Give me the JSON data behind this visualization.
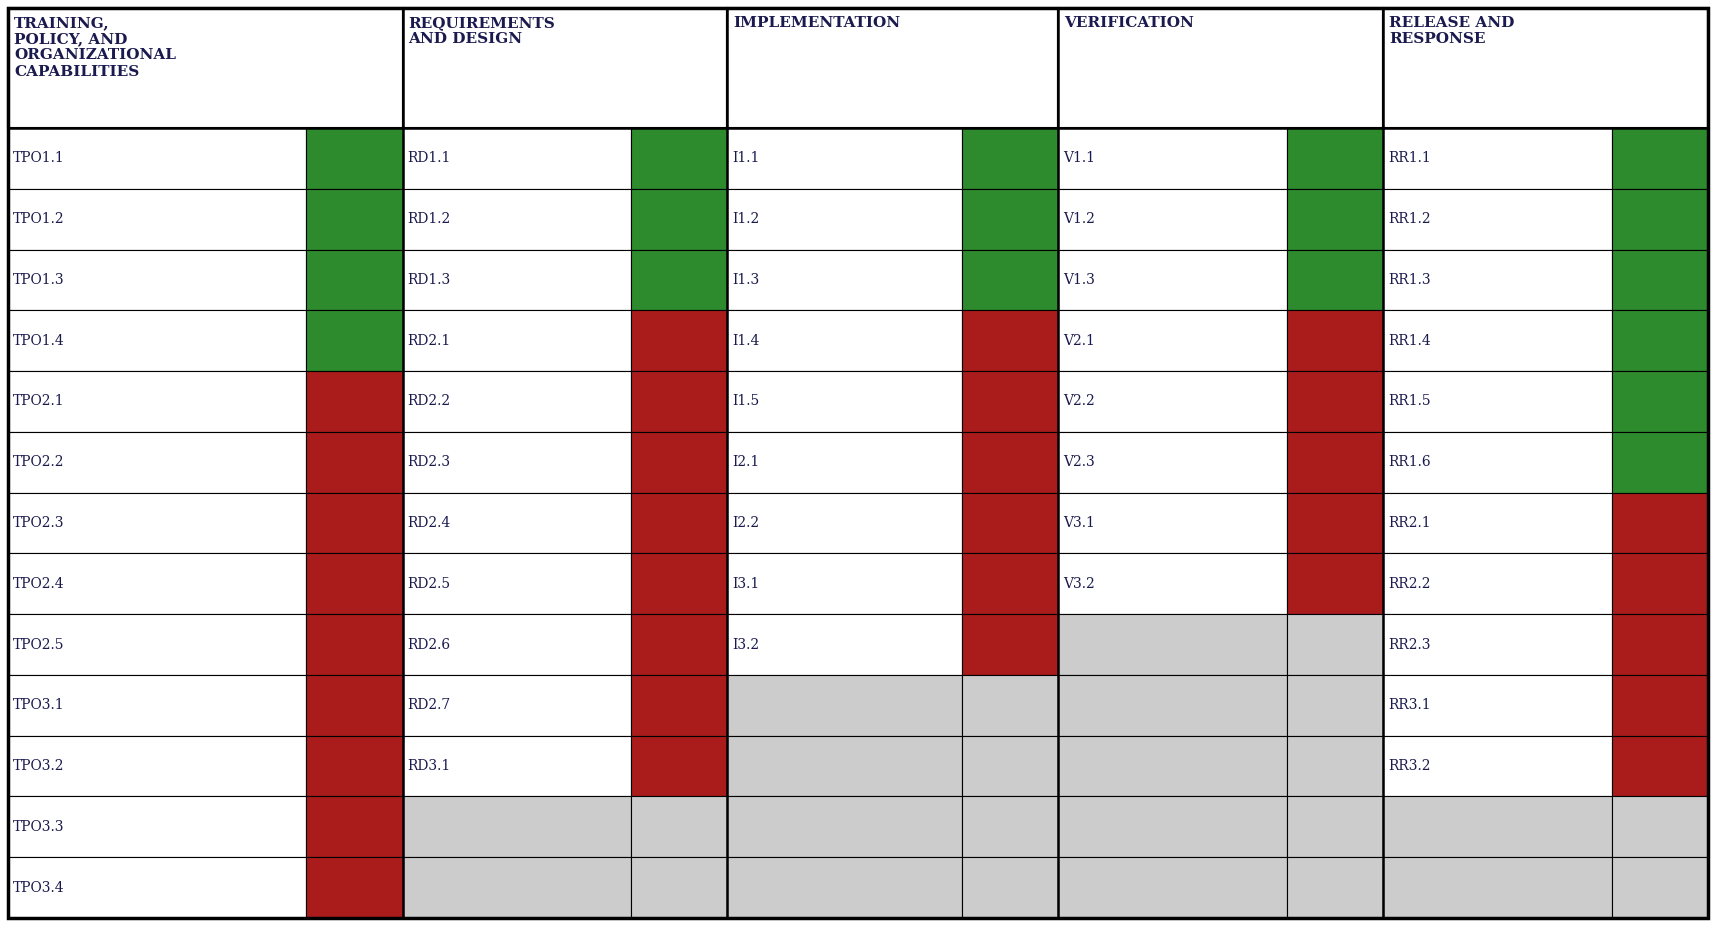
{
  "headers": [
    "TRAINING,\nPOLICY, AND\nORGANIZATIONAL\nCAPABILITIES",
    "REQUIREMENTS\nAND DESIGN",
    "IMPLEMENTATION",
    "VERIFICATION",
    "RELEASE AND\nRESPONSE"
  ],
  "columns": [
    {
      "items": [
        "TPO1.1",
        "TPO1.2",
        "TPO1.3",
        "TPO1.4",
        "TPO2.1",
        "TPO2.2",
        "TPO2.3",
        "TPO2.4",
        "TPO2.5",
        "TPO3.1",
        "TPO3.2",
        "TPO3.3",
        "TPO3.4"
      ],
      "empty_from": 13,
      "color_blocks": [
        {
          "rows": [
            0,
            1,
            2,
            3
          ],
          "color": "green"
        },
        {
          "rows": [
            4,
            5,
            6,
            7,
            8,
            9,
            10,
            11,
            12
          ],
          "color": "red"
        }
      ]
    },
    {
      "items": [
        "RD1.1",
        "RD1.2",
        "RD1.3",
        "RD2.1",
        "RD2.2",
        "RD2.3",
        "RD2.4",
        "RD2.5",
        "RD2.6",
        "RD2.7",
        "RD3.1"
      ],
      "empty_from": 11,
      "color_blocks": [
        {
          "rows": [
            0,
            1,
            2
          ],
          "color": "green"
        },
        {
          "rows": [
            3,
            4,
            5,
            6,
            7,
            8,
            9,
            10
          ],
          "color": "red"
        }
      ]
    },
    {
      "items": [
        "I1.1",
        "I1.2",
        "I1.3",
        "I1.4",
        "I1.5",
        "I2.1",
        "I2.2",
        "I3.1",
        "I3.2"
      ],
      "empty_from": 9,
      "color_blocks": [
        {
          "rows": [
            0,
            1,
            2
          ],
          "color": "green"
        },
        {
          "rows": [
            3,
            4,
            5,
            6,
            7,
            8
          ],
          "color": "red"
        }
      ]
    },
    {
      "items": [
        "V1.1",
        "V1.2",
        "V1.3",
        "V2.1",
        "V2.2",
        "V2.3",
        "V3.1",
        "V3.2"
      ],
      "empty_from": 8,
      "color_blocks": [
        {
          "rows": [
            0,
            1,
            2
          ],
          "color": "green"
        },
        {
          "rows": [
            3,
            4,
            5,
            6,
            7
          ],
          "color": "red"
        }
      ]
    },
    {
      "items": [
        "RR1.1",
        "RR1.2",
        "RR1.3",
        "RR1.4",
        "RR1.5",
        "RR1.6",
        "RR2.1",
        "RR2.2",
        "RR2.3",
        "RR3.1",
        "RR3.2"
      ],
      "empty_from": 11,
      "color_blocks": [
        {
          "rows": [
            0,
            1,
            2,
            3,
            4,
            5
          ],
          "color": "green"
        },
        {
          "rows": [
            6,
            7,
            8,
            9,
            10
          ],
          "color": "red"
        }
      ]
    }
  ],
  "num_rows": 13,
  "green": "#2d8a2d",
  "red": "#aa1c1c",
  "lightgray": "#cccccc",
  "white": "#ffffff",
  "border_color": "#000000",
  "text_color": "#1a1a4e",
  "header_text_color": "#1a1a4e",
  "header_fontsize": 11,
  "label_fontsize": 10,
  "figsize": [
    17.16,
    9.26
  ],
  "dpi": 100
}
